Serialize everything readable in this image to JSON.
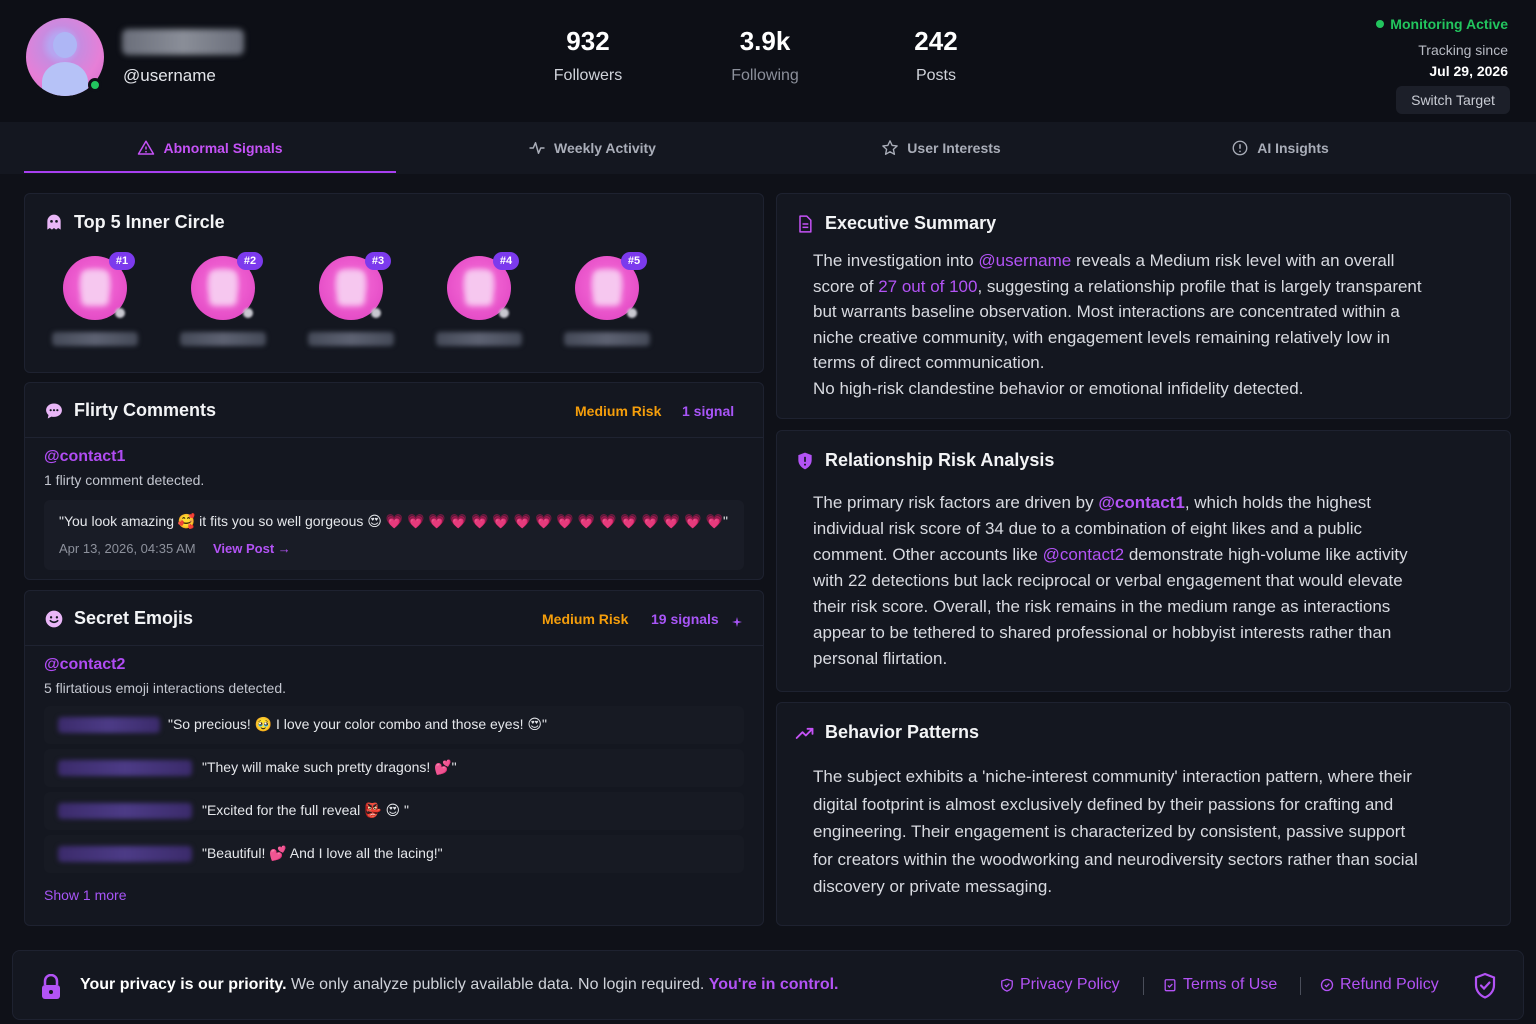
{
  "profile": {
    "username": "@username",
    "stats": [
      {
        "value": "932",
        "label": "Followers"
      },
      {
        "value": "3.9k",
        "label": "Following"
      },
      {
        "value": "242",
        "label": "Posts"
      }
    ]
  },
  "monitor": {
    "status": "Monitoring Active",
    "since_label": "Tracking since",
    "since_date": "Jul 29, 2026",
    "switch_label": "Switch Target"
  },
  "tabs": [
    {
      "label": "Abnormal Signals",
      "icon": "warning-icon",
      "active": true
    },
    {
      "label": "Weekly Activity",
      "icon": "pulse-icon",
      "active": false
    },
    {
      "label": "User Interests",
      "icon": "star-icon",
      "active": false
    },
    {
      "label": "AI Insights",
      "icon": "info-icon",
      "active": false
    }
  ],
  "inner_circle": {
    "title": "Top 5 Inner Circle",
    "ranks": [
      "#1",
      "#2",
      "#3",
      "#4",
      "#5"
    ]
  },
  "flirty": {
    "title": "Flirty Comments",
    "risk": "Medium Risk",
    "signals": "1 signal",
    "handle": "@contact1",
    "summary": "1 flirty comment detected.",
    "quote": "\"You look amazing 🥰 it fits you so well gorgeous 😍 💗 💗 💗 💗 💗 💗 💗 💗 💗 💗 💗 💗 💗 💗 💗 💗\"",
    "timestamp": "Apr 13, 2026, 04:35 AM",
    "view_post": "View Post →"
  },
  "emojis": {
    "title": "Secret Emojis",
    "risk": "Medium Risk",
    "signals": "19 signals",
    "handle": "@contact2",
    "summary": "5 flirtatious emoji interactions detected.",
    "items": [
      "\"So precious! 🥹 I love your color combo and those eyes! 😍\"",
      "\"They will make such pretty dragons! 💕\"",
      "\"Excited for the full reveal 👺 😍 \"",
      "\"Beautiful! 💕 And I love all the lacing!\""
    ],
    "show_more": "Show 1 more"
  },
  "executive": {
    "title": "Executive Summary",
    "p1": "The investigation into ",
    "handle": "@username",
    "p2": " reveals a Medium risk level with an overall score of ",
    "score": "27 out of 100",
    "p3": ", suggesting a relationship profile that is largely transparent but warrants baseline observation. Most interactions are concentrated within a niche creative community, with engagement levels remaining relatively low in terms of direct communication.",
    "p4": "No high-risk clandestine behavior or emotional infidelity detected."
  },
  "risk_analysis": {
    "title": "Relationship Risk Analysis",
    "p1": "The primary risk factors are driven by ",
    "h1": "@contact1",
    "p2": ", which holds the highest individual risk score of 34 due to a combination of eight likes and a public comment. Other accounts like ",
    "h2": "@contact2",
    "p3": " demonstrate high-volume like activity with 22 detections but lack reciprocal or verbal engagement that would elevate their risk score. Overall, the risk remains in the medium range as interactions appear to be tethered to shared professional or hobbyist interests rather than personal flirtation."
  },
  "behavior": {
    "title": "Behavior Patterns",
    "text": "The subject exhibits a 'niche-interest community' interaction pattern, where their digital footprint is almost exclusively defined by their passions for crafting and engineering. Their engagement is characterized by consistent, passive support for creators within the woodworking and neurodiversity sectors rather than social discovery or private messaging."
  },
  "footer": {
    "bold": "Your privacy is our priority.",
    "text": " We only analyze publicly available data. No login required. ",
    "control": "You're in control.",
    "links": [
      "Privacy Policy",
      "Terms of Use",
      "Refund Policy"
    ]
  },
  "colors": {
    "accent": "#a855f7",
    "risk": "#f59e0b",
    "online": "#22c55e",
    "bg": "#0f1118"
  }
}
